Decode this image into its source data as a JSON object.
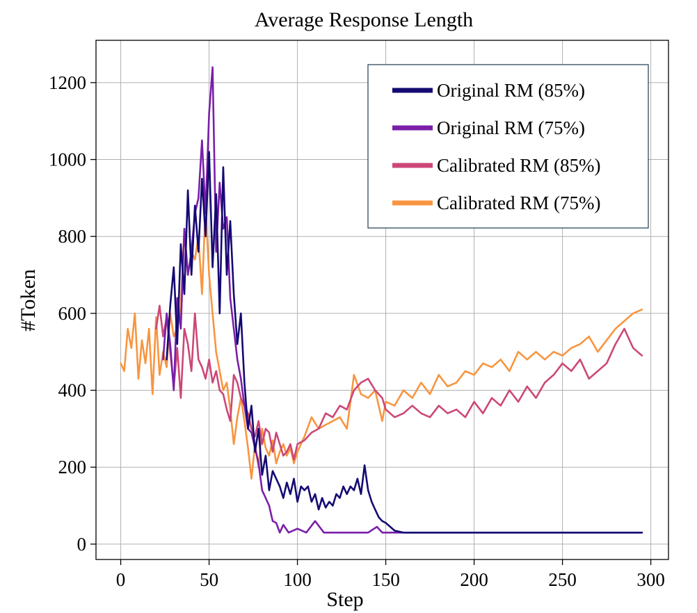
{
  "chart_data": {
    "type": "line",
    "title": "Average Response Length",
    "xlabel": "Step",
    "ylabel": "#Token",
    "xlim": [
      -14,
      310
    ],
    "ylim": [
      -40,
      1310
    ],
    "xticks": [
      0,
      50,
      100,
      150,
      200,
      250,
      300
    ],
    "yticks": [
      0,
      200,
      400,
      600,
      800,
      1000,
      1200
    ],
    "grid": true,
    "legend_position": "top-right",
    "series": [
      {
        "name": "Original RM (85%)",
        "color": "#140a72",
        "x": [
          26,
          28,
          30,
          32,
          34,
          36,
          38,
          40,
          42,
          44,
          46,
          48,
          50,
          52,
          54,
          56,
          58,
          60,
          62,
          64,
          66,
          68,
          70,
          72,
          74,
          76,
          78,
          80,
          82,
          84,
          86,
          88,
          90,
          92,
          94,
          96,
          98,
          100,
          102,
          104,
          106,
          108,
          110,
          112,
          114,
          116,
          118,
          120,
          122,
          124,
          126,
          128,
          130,
          132,
          134,
          136,
          138,
          140,
          142,
          144,
          146,
          148,
          150,
          155,
          160,
          170,
          180,
          190,
          200,
          210,
          220,
          230,
          240,
          250,
          260,
          270,
          280,
          290,
          295
        ],
        "y": [
          480,
          620,
          720,
          520,
          780,
          650,
          920,
          700,
          880,
          760,
          950,
          800,
          1020,
          720,
          910,
          600,
          980,
          700,
          840,
          650,
          520,
          600,
          420,
          300,
          360,
          240,
          300,
          180,
          230,
          140,
          190,
          170,
          150,
          120,
          160,
          130,
          170,
          110,
          150,
          140,
          150,
          110,
          130,
          90,
          120,
          95,
          110,
          100,
          130,
          120,
          150,
          130,
          150,
          140,
          170,
          130,
          205,
          140,
          110,
          90,
          70,
          60,
          55,
          35,
          30,
          30,
          30,
          30,
          30,
          30,
          30,
          30,
          30,
          30,
          30,
          30,
          30,
          30,
          30
        ]
      },
      {
        "name": "Original RM (75%)",
        "color": "#7a1fa8",
        "x": [
          24,
          26,
          28,
          30,
          32,
          34,
          36,
          38,
          40,
          42,
          44,
          46,
          48,
          50,
          52,
          54,
          56,
          58,
          60,
          62,
          64,
          66,
          68,
          70,
          72,
          74,
          76,
          78,
          80,
          82,
          84,
          86,
          88,
          90,
          92,
          95,
          100,
          105,
          110,
          115,
          120,
          130,
          140,
          145,
          148,
          150,
          160,
          170,
          180,
          190,
          200,
          220,
          240,
          260,
          280,
          295
        ],
        "y": [
          480,
          600,
          520,
          400,
          640,
          560,
          820,
          700,
          760,
          860,
          900,
          1050,
          860,
          1120,
          1240,
          760,
          940,
          820,
          850,
          640,
          560,
          480,
          430,
          360,
          300,
          290,
          250,
          210,
          140,
          120,
          100,
          60,
          55,
          30,
          50,
          30,
          40,
          30,
          60,
          30,
          30,
          30,
          30,
          45,
          30,
          30,
          30,
          30,
          30,
          30,
          30,
          30,
          30,
          30,
          30,
          30
        ]
      },
      {
        "name": "Calibrated RM (85%)",
        "color": "#cc4778",
        "x": [
          20,
          22,
          24,
          26,
          28,
          30,
          32,
          34,
          36,
          38,
          40,
          42,
          44,
          46,
          48,
          50,
          52,
          54,
          56,
          58,
          60,
          62,
          64,
          66,
          68,
          70,
          72,
          74,
          76,
          78,
          80,
          82,
          84,
          86,
          88,
          90,
          92,
          94,
          96,
          98,
          100,
          104,
          108,
          112,
          116,
          120,
          124,
          128,
          132,
          136,
          140,
          144,
          148,
          150,
          155,
          160,
          165,
          170,
          175,
          180,
          185,
          190,
          195,
          200,
          205,
          210,
          215,
          220,
          225,
          230,
          235,
          240,
          245,
          250,
          255,
          260,
          265,
          270,
          275,
          280,
          285,
          290,
          295
        ],
        "y": [
          560,
          620,
          540,
          590,
          500,
          410,
          510,
          380,
          560,
          520,
          450,
          600,
          480,
          460,
          430,
          480,
          420,
          450,
          400,
          390,
          350,
          320,
          440,
          420,
          380,
          360,
          340,
          300,
          280,
          320,
          260,
          300,
          290,
          240,
          290,
          260,
          230,
          240,
          260,
          220,
          260,
          270,
          290,
          300,
          340,
          330,
          360,
          350,
          400,
          420,
          430,
          400,
          380,
          350,
          330,
          340,
          360,
          340,
          330,
          360,
          340,
          350,
          330,
          370,
          340,
          380,
          360,
          400,
          370,
          410,
          380,
          420,
          440,
          470,
          450,
          480,
          430,
          450,
          470,
          520,
          560,
          510,
          490
        ]
      },
      {
        "name": "Calibrated RM (75%)",
        "color": "#f89540",
        "x": [
          0,
          2,
          4,
          6,
          8,
          10,
          12,
          14,
          16,
          18,
          20,
          22,
          24,
          26,
          28,
          30,
          32,
          34,
          36,
          38,
          40,
          42,
          44,
          46,
          48,
          50,
          52,
          54,
          56,
          58,
          60,
          62,
          64,
          66,
          68,
          70,
          72,
          74,
          76,
          78,
          80,
          82,
          84,
          86,
          88,
          90,
          92,
          94,
          96,
          98,
          100,
          104,
          108,
          112,
          116,
          120,
          124,
          128,
          132,
          136,
          140,
          144,
          148,
          150,
          155,
          160,
          165,
          170,
          175,
          180,
          185,
          190,
          195,
          200,
          205,
          210,
          215,
          220,
          225,
          230,
          235,
          240,
          245,
          250,
          255,
          260,
          265,
          270,
          275,
          280,
          285,
          290,
          295
        ],
        "y": [
          470,
          450,
          560,
          510,
          600,
          430,
          530,
          470,
          560,
          390,
          590,
          440,
          500,
          460,
          600,
          540,
          560,
          620,
          820,
          700,
          760,
          740,
          800,
          650,
          880,
          700,
          600,
          500,
          450,
          400,
          420,
          350,
          260,
          330,
          380,
          320,
          250,
          170,
          260,
          200,
          300,
          250,
          230,
          270,
          210,
          240,
          260,
          230,
          250,
          210,
          240,
          280,
          330,
          300,
          310,
          320,
          330,
          300,
          440,
          390,
          380,
          400,
          320,
          370,
          360,
          400,
          380,
          420,
          390,
          440,
          410,
          420,
          450,
          440,
          470,
          460,
          480,
          450,
          500,
          480,
          500,
          480,
          500,
          490,
          510,
          520,
          540,
          500,
          530,
          560,
          580,
          600,
          610
        ]
      }
    ]
  }
}
